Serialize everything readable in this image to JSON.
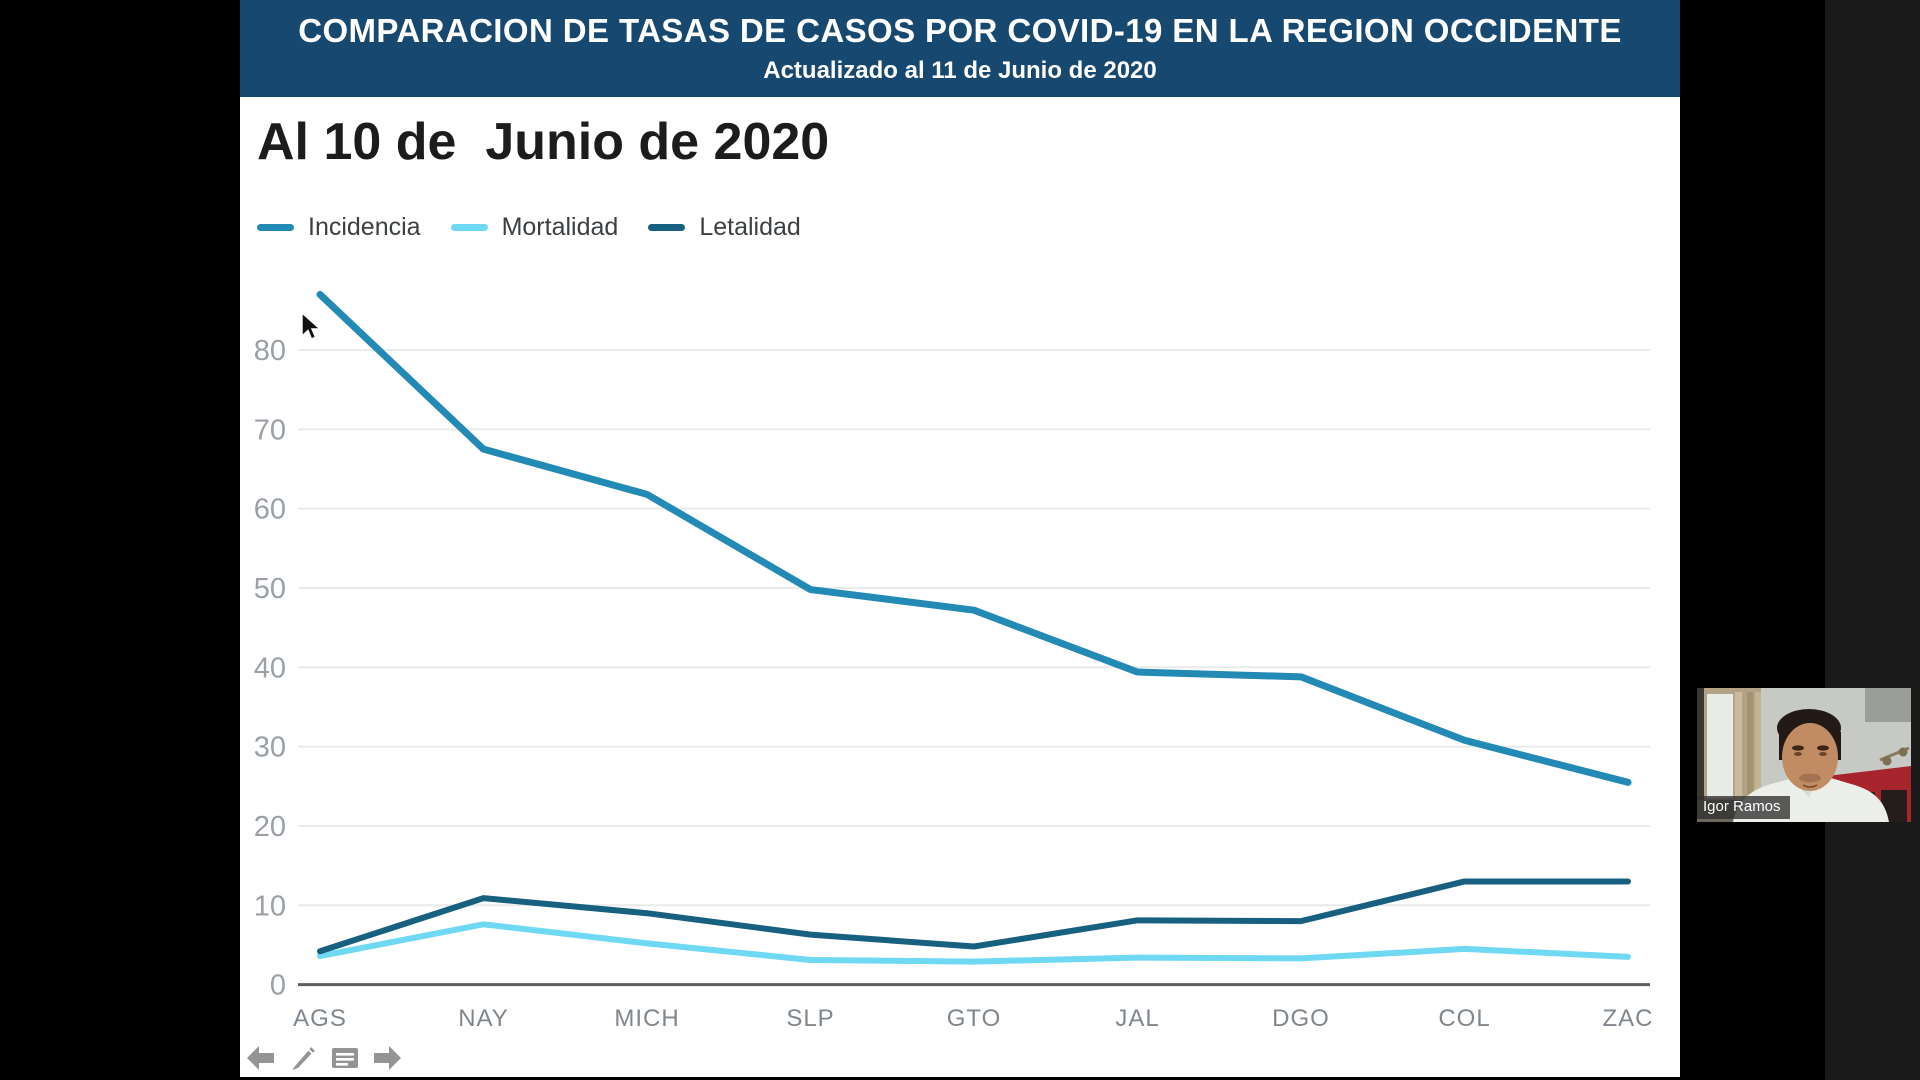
{
  "header": {
    "title": "COMPARACION DE TASAS DE CASOS POR COVID-19 EN LA REGION OCCIDENTE",
    "subtitle": "Actualizado al 11 de Junio de 2020"
  },
  "slide": {
    "heading": "Al 10 de  Junio de 2020"
  },
  "chart_data": {
    "type": "line",
    "title": "Al 10 de Junio de 2020",
    "categories": [
      "AGS",
      "NAY",
      "MICH",
      "SLP",
      "GTO",
      "JAL",
      "DGO",
      "COL",
      "ZAC"
    ],
    "series": [
      {
        "name": "Incidencia",
        "color": "#2389b5",
        "values": [
          87,
          67.5,
          61.8,
          49.8,
          47.2,
          39.4,
          38.8,
          30.8,
          25.5
        ]
      },
      {
        "name": "Mortalidad",
        "color": "#6fd8f2",
        "values": [
          3.6,
          7.6,
          5.2,
          3.1,
          2.9,
          3.4,
          3.3,
          4.5,
          3.5
        ]
      },
      {
        "name": "Letalidad",
        "color": "#17607f",
        "values": [
          4.2,
          10.9,
          9.0,
          6.3,
          4.8,
          8.1,
          8.0,
          13.0,
          13.0
        ]
      }
    ],
    "xlabel": "",
    "ylabel": "",
    "ylim": [
      0,
      90
    ],
    "yticks": [
      0,
      10,
      20,
      30,
      40,
      50,
      60,
      70,
      80
    ],
    "grid": true,
    "legend_position": "top-left"
  },
  "toolbar": {
    "icons": [
      "previous-arrow-icon",
      "pencil-icon",
      "speaker-notes-icon",
      "next-arrow-icon"
    ]
  },
  "webcam": {
    "name_label": "Igor Ramos"
  },
  "colors": {
    "header_bg": "#17486f",
    "slide_bg": "#ffffff",
    "letterbox": "#000000",
    "right_strip": "#1a1a1a",
    "gridline": "#e9eaea",
    "axis": "#5c5f62",
    "tick_label": "#9aa0a6",
    "category_label": "#7f868c",
    "toolbar_icon": "#949494"
  }
}
